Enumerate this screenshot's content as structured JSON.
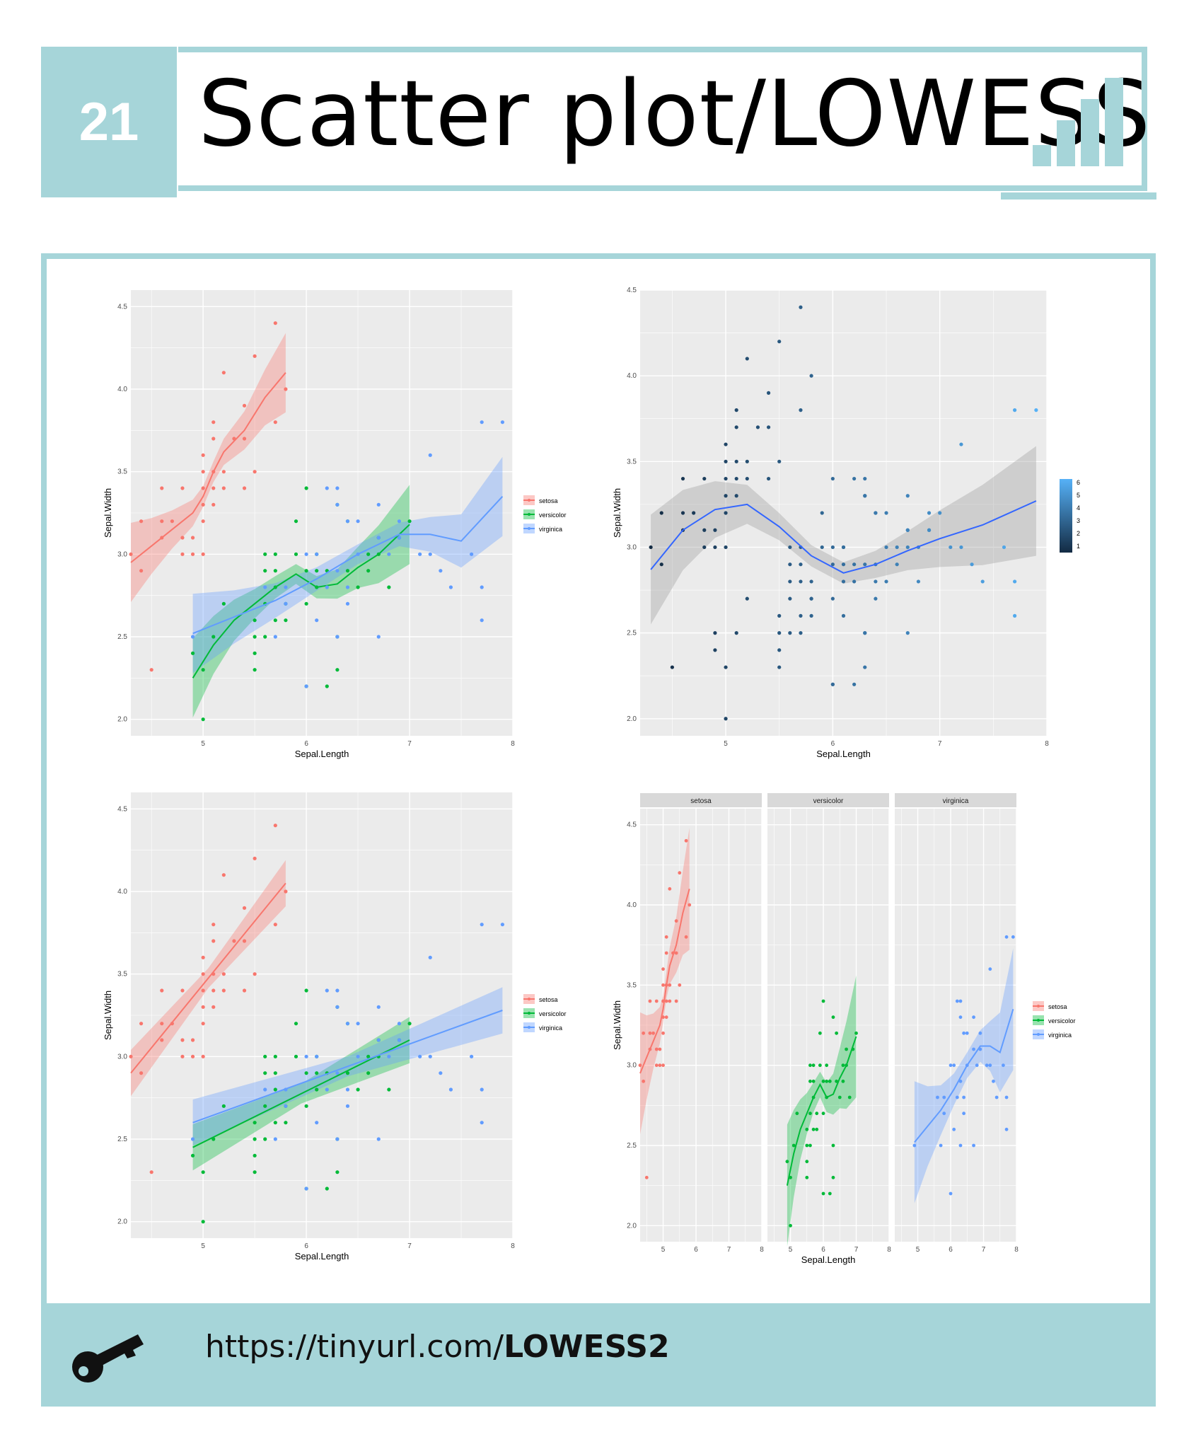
{
  "header": {
    "number": "21",
    "title": "Scatter plot/LOWESS"
  },
  "footer": {
    "url_prefix": "https://tinyurl.com/",
    "url_bold": "LOWESS2"
  },
  "colors": {
    "accent": "#a6d5d9",
    "setosa": "#f8766d",
    "versicolor": "#00ba38",
    "virginica": "#619cff",
    "smooth_blue": "#3366ff"
  },
  "icons": {
    "header": "bar-chart-icon",
    "footer": "key-icon"
  },
  "chart_data": [
    {
      "type": "scatter",
      "xlabel": "Sepal.Length",
      "ylabel": "Sepal.Width",
      "xlim": [
        4.3,
        8.0
      ],
      "ylim": [
        1.9,
        4.6
      ],
      "xticks": [
        "5",
        "6",
        "7",
        "8"
      ],
      "yticks": [
        "2.0",
        "2.5",
        "3.0",
        "3.5",
        "4.0",
        "4.5"
      ],
      "smoother": "loess",
      "legend_position": "right",
      "series": [
        {
          "name": "setosa",
          "points": [
            [
              4.3,
              3.0
            ],
            [
              4.4,
              3.2
            ],
            [
              4.4,
              2.9
            ],
            [
              4.5,
              2.3
            ],
            [
              4.6,
              3.1
            ],
            [
              4.6,
              3.4
            ],
            [
              4.6,
              3.2
            ],
            [
              4.7,
              3.2
            ],
            [
              4.8,
              3.4
            ],
            [
              4.8,
              3.0
            ],
            [
              4.8,
              3.1
            ],
            [
              4.9,
              3.0
            ],
            [
              4.9,
              3.1
            ],
            [
              5.0,
              3.6
            ],
            [
              5.0,
              3.4
            ],
            [
              5.0,
              3.0
            ],
            [
              5.0,
              3.3
            ],
            [
              5.0,
              3.5
            ],
            [
              5.0,
              3.2
            ],
            [
              5.1,
              3.5
            ],
            [
              5.1,
              3.8
            ],
            [
              5.1,
              3.7
            ],
            [
              5.1,
              3.3
            ],
            [
              5.1,
              3.4
            ],
            [
              5.2,
              3.5
            ],
            [
              5.2,
              3.4
            ],
            [
              5.2,
              4.1
            ],
            [
              5.3,
              3.7
            ],
            [
              5.4,
              3.9
            ],
            [
              5.4,
              3.7
            ],
            [
              5.4,
              3.4
            ],
            [
              5.5,
              4.2
            ],
            [
              5.5,
              3.5
            ],
            [
              5.7,
              3.8
            ],
            [
              5.7,
              4.4
            ],
            [
              5.8,
              4.0
            ]
          ],
          "smooth": [
            [
              4.3,
              2.95
            ],
            [
              4.5,
              3.05
            ],
            [
              4.7,
              3.15
            ],
            [
              4.9,
              3.25
            ],
            [
              5.0,
              3.35
            ],
            [
              5.1,
              3.5
            ],
            [
              5.2,
              3.62
            ],
            [
              5.4,
              3.75
            ],
            [
              5.6,
              3.95
            ],
            [
              5.8,
              4.1
            ]
          ]
        },
        {
          "name": "versicolor",
          "points": [
            [
              4.9,
              2.4
            ],
            [
              5.0,
              2.0
            ],
            [
              5.0,
              2.3
            ],
            [
              5.1,
              2.5
            ],
            [
              5.2,
              2.7
            ],
            [
              5.5,
              2.3
            ],
            [
              5.5,
              2.4
            ],
            [
              5.5,
              2.5
            ],
            [
              5.5,
              2.6
            ],
            [
              5.6,
              2.9
            ],
            [
              5.6,
              3.0
            ],
            [
              5.6,
              2.5
            ],
            [
              5.6,
              2.7
            ],
            [
              5.7,
              2.8
            ],
            [
              5.7,
              3.0
            ],
            [
              5.7,
              2.9
            ],
            [
              5.7,
              2.6
            ],
            [
              5.8,
              2.7
            ],
            [
              5.8,
              2.6
            ],
            [
              5.9,
              3.0
            ],
            [
              5.9,
              3.2
            ],
            [
              6.0,
              2.2
            ],
            [
              6.0,
              2.9
            ],
            [
              6.0,
              3.4
            ],
            [
              6.0,
              2.7
            ],
            [
              6.1,
              2.8
            ],
            [
              6.1,
              3.0
            ],
            [
              6.1,
              2.9
            ],
            [
              6.2,
              2.2
            ],
            [
              6.2,
              2.9
            ],
            [
              6.3,
              2.3
            ],
            [
              6.3,
              2.5
            ],
            [
              6.3,
              3.3
            ],
            [
              6.4,
              2.9
            ],
            [
              6.4,
              3.2
            ],
            [
              6.5,
              2.8
            ],
            [
              6.6,
              2.9
            ],
            [
              6.6,
              3.0
            ],
            [
              6.7,
              3.1
            ],
            [
              6.7,
              3.0
            ],
            [
              6.8,
              2.8
            ],
            [
              6.9,
              3.1
            ],
            [
              7.0,
              3.2
            ]
          ],
          "smooth": [
            [
              4.9,
              2.25
            ],
            [
              5.1,
              2.45
            ],
            [
              5.3,
              2.6
            ],
            [
              5.5,
              2.7
            ],
            [
              5.7,
              2.8
            ],
            [
              5.9,
              2.88
            ],
            [
              6.1,
              2.8
            ],
            [
              6.3,
              2.82
            ],
            [
              6.5,
              2.92
            ],
            [
              6.7,
              3.0
            ],
            [
              7.0,
              3.18
            ]
          ]
        },
        {
          "name": "virginica",
          "points": [
            [
              4.9,
              2.5
            ],
            [
              5.6,
              2.8
            ],
            [
              5.7,
              2.5
            ],
            [
              5.8,
              2.7
            ],
            [
              5.8,
              2.8
            ],
            [
              6.0,
              2.2
            ],
            [
              6.0,
              3.0
            ],
            [
              6.1,
              3.0
            ],
            [
              6.1,
              2.6
            ],
            [
              6.2,
              2.8
            ],
            [
              6.2,
              3.4
            ],
            [
              6.3,
              3.3
            ],
            [
              6.3,
              2.9
            ],
            [
              6.3,
              2.5
            ],
            [
              6.3,
              3.4
            ],
            [
              6.4,
              2.7
            ],
            [
              6.4,
              3.2
            ],
            [
              6.4,
              2.8
            ],
            [
              6.5,
              3.0
            ],
            [
              6.5,
              3.2
            ],
            [
              6.7,
              2.5
            ],
            [
              6.7,
              3.3
            ],
            [
              6.7,
              3.1
            ],
            [
              6.8,
              3.0
            ],
            [
              6.9,
              3.2
            ],
            [
              6.9,
              3.1
            ],
            [
              7.1,
              3.0
            ],
            [
              7.2,
              3.6
            ],
            [
              7.2,
              3.0
            ],
            [
              7.3,
              2.9
            ],
            [
              7.4,
              2.8
            ],
            [
              7.6,
              3.0
            ],
            [
              7.7,
              3.8
            ],
            [
              7.7,
              2.6
            ],
            [
              7.7,
              2.8
            ],
            [
              7.9,
              3.8
            ]
          ],
          "smooth": [
            [
              4.9,
              2.52
            ],
            [
              5.3,
              2.62
            ],
            [
              5.7,
              2.72
            ],
            [
              6.1,
              2.85
            ],
            [
              6.5,
              3.0
            ],
            [
              6.9,
              3.12
            ],
            [
              7.2,
              3.12
            ],
            [
              7.5,
              3.08
            ],
            [
              7.9,
              3.35
            ]
          ]
        }
      ]
    },
    {
      "type": "scatter",
      "xlabel": "Sepal.Length",
      "ylabel": "Sepal.Width",
      "xlim": [
        4.2,
        8.0
      ],
      "ylim": [
        1.9,
        4.5
      ],
      "xticks": [
        "5",
        "6",
        "7",
        "8"
      ],
      "yticks": [
        "2.0",
        "2.5",
        "3.0",
        "3.5",
        "4.0",
        "4.5"
      ],
      "smoother": "loess",
      "legend_position": "right",
      "colorbar_ticks": [
        "6",
        "5",
        "4",
        "3",
        "2",
        "1"
      ],
      "smooth": [
        [
          4.3,
          2.87
        ],
        [
          4.6,
          3.1
        ],
        [
          4.9,
          3.22
        ],
        [
          5.2,
          3.25
        ],
        [
          5.5,
          3.12
        ],
        [
          5.8,
          2.95
        ],
        [
          6.1,
          2.85
        ],
        [
          6.4,
          2.9
        ],
        [
          6.7,
          2.98
        ],
        [
          7.0,
          3.05
        ],
        [
          7.4,
          3.13
        ],
        [
          7.9,
          3.27
        ]
      ]
    },
    {
      "type": "scatter",
      "xlabel": "Sepal.Length",
      "ylabel": "Sepal.Width",
      "xlim": [
        4.3,
        8.0
      ],
      "ylim": [
        1.9,
        4.6
      ],
      "xticks": [
        "5",
        "6",
        "7",
        "8"
      ],
      "yticks": [
        "2.0",
        "2.5",
        "3.0",
        "3.5",
        "4.0",
        "4.5"
      ],
      "smoother": "lm",
      "legend_position": "right",
      "series_names": [
        "setosa",
        "versicolor",
        "virginica"
      ],
      "lines": {
        "setosa": [
          [
            4.3,
            2.9
          ],
          [
            5.8,
            4.05
          ]
        ],
        "versicolor": [
          [
            4.9,
            2.45
          ],
          [
            7.0,
            3.1
          ]
        ],
        "virginica": [
          [
            4.9,
            2.6
          ],
          [
            7.9,
            3.28
          ]
        ]
      }
    },
    {
      "type": "scatter",
      "xlabel": "Sepal.Length",
      "ylabel": "Sepal.Width",
      "facets": [
        "setosa",
        "versicolor",
        "virginica"
      ],
      "xlim": [
        4.3,
        8.0
      ],
      "ylim": [
        1.9,
        4.6
      ],
      "xticks": [
        "5",
        "6",
        "7",
        "8"
      ],
      "yticks": [
        "2.0",
        "2.5",
        "3.0",
        "3.5",
        "4.0",
        "4.5"
      ],
      "smoother": "loess",
      "legend_position": "right",
      "series_names": [
        "setosa",
        "versicolor",
        "virginica"
      ]
    }
  ]
}
